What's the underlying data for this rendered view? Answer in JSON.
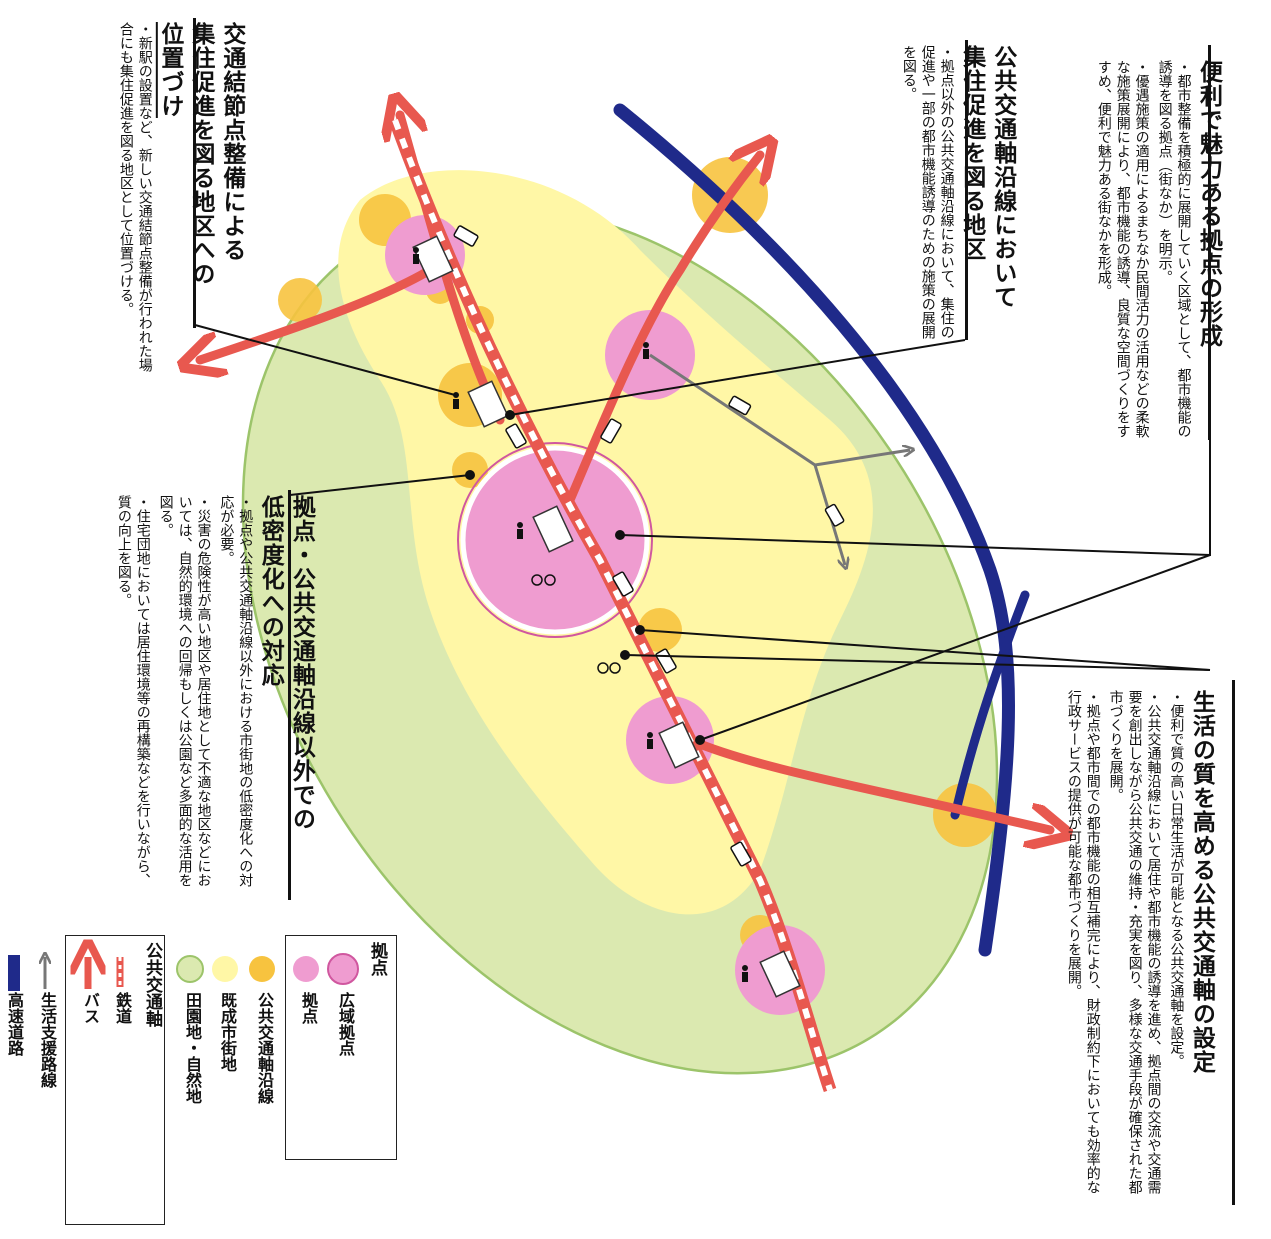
{
  "colors": {
    "countryside": "#dbe9b0",
    "countryside_border": "#9cc46a",
    "urban": "#fff7a6",
    "transit_corridor": "#f7c33f",
    "hub": "#ef9cd0",
    "hub_border": "#d0579f",
    "rail": "#e8584f",
    "bus_arrow": "#e8584f",
    "support_road": "#777777",
    "expressway": "#1f2a8a"
  },
  "sections": {
    "attractive_hubs": {
      "title": "便利で魅力ある拠点の形成",
      "bullets": [
        "都市整備を積極的に展開していく区域として、都市機能の誘導を図る拠点（街なか）を明示。",
        "優遇施策の適用によるまちなか民間活力の活用などの柔軟な施策展開により、都市機能の誘導、良質な空間づくりをすすめ、便利で魅力ある街なかを形成。"
      ]
    },
    "transit_axis": {
      "title": "生活の質を高める公共交通軸の設定",
      "bullets": [
        "便利で質の高い日常生活が可能となる公共交通軸を設定。",
        "公共交通軸沿線において居住や都市機能の誘導を進め、拠点間の交流や交通需要を創出しながら公共交通の維持・充実を図り、多様な交通手段が確保された都市づくりを展開。",
        "拠点や都市間での都市機能の相互補完により、財政制約下においても効率的な行政サービスの提供が可能な都市づくりを展開。"
      ]
    },
    "corridor_residence": {
      "title_line1": "公共交通軸沿線において",
      "title_line2": "集住促進を図る地区",
      "bullets": [
        "拠点以外の公共交通軸沿線において、集住の促進や一部の都市機能誘導のための施策の展開を図る。"
      ]
    },
    "node_positioning": {
      "title_line1": "交通結節点整備による",
      "title_line2": "集住促進を図る地区への",
      "title_line3": "位置づけ",
      "bullets": [
        "新駅の設置など、新しい交通結節点整備が行われた場合にも集住促進を図る地区として位置づける。"
      ]
    },
    "low_density": {
      "title_line1": "拠点・公共交通軸沿線以外での",
      "title_line2": "低密度化への対応",
      "bullets": [
        "拠点や公共交通軸沿線以外における市街地の低密度化への対応が必要。",
        "災害の危険性が高い地区や居住地として不適な地区などにおいては、自然的環境への回帰もしくは公園など多面的な活用を図る。",
        "住宅団地においては居住環境等の再構築などを行いながら、質の向上を図る。"
      ]
    }
  },
  "legend": {
    "hub_header": "拠点",
    "regional_hub": "広域拠点",
    "hub": "拠点",
    "transit_corridor": "公共交通軸沿線",
    "built_up_area": "既成市街地",
    "countryside": "田園地・自然地",
    "transit_header": "公共交通軸",
    "railway": "鉄道",
    "bus": "バス",
    "support_road": "生活支援路線",
    "expressway": "高速道路"
  },
  "icons": [
    "pedestrian-icon",
    "bicycle-icon",
    "bus-icon",
    "train-station-icon"
  ]
}
